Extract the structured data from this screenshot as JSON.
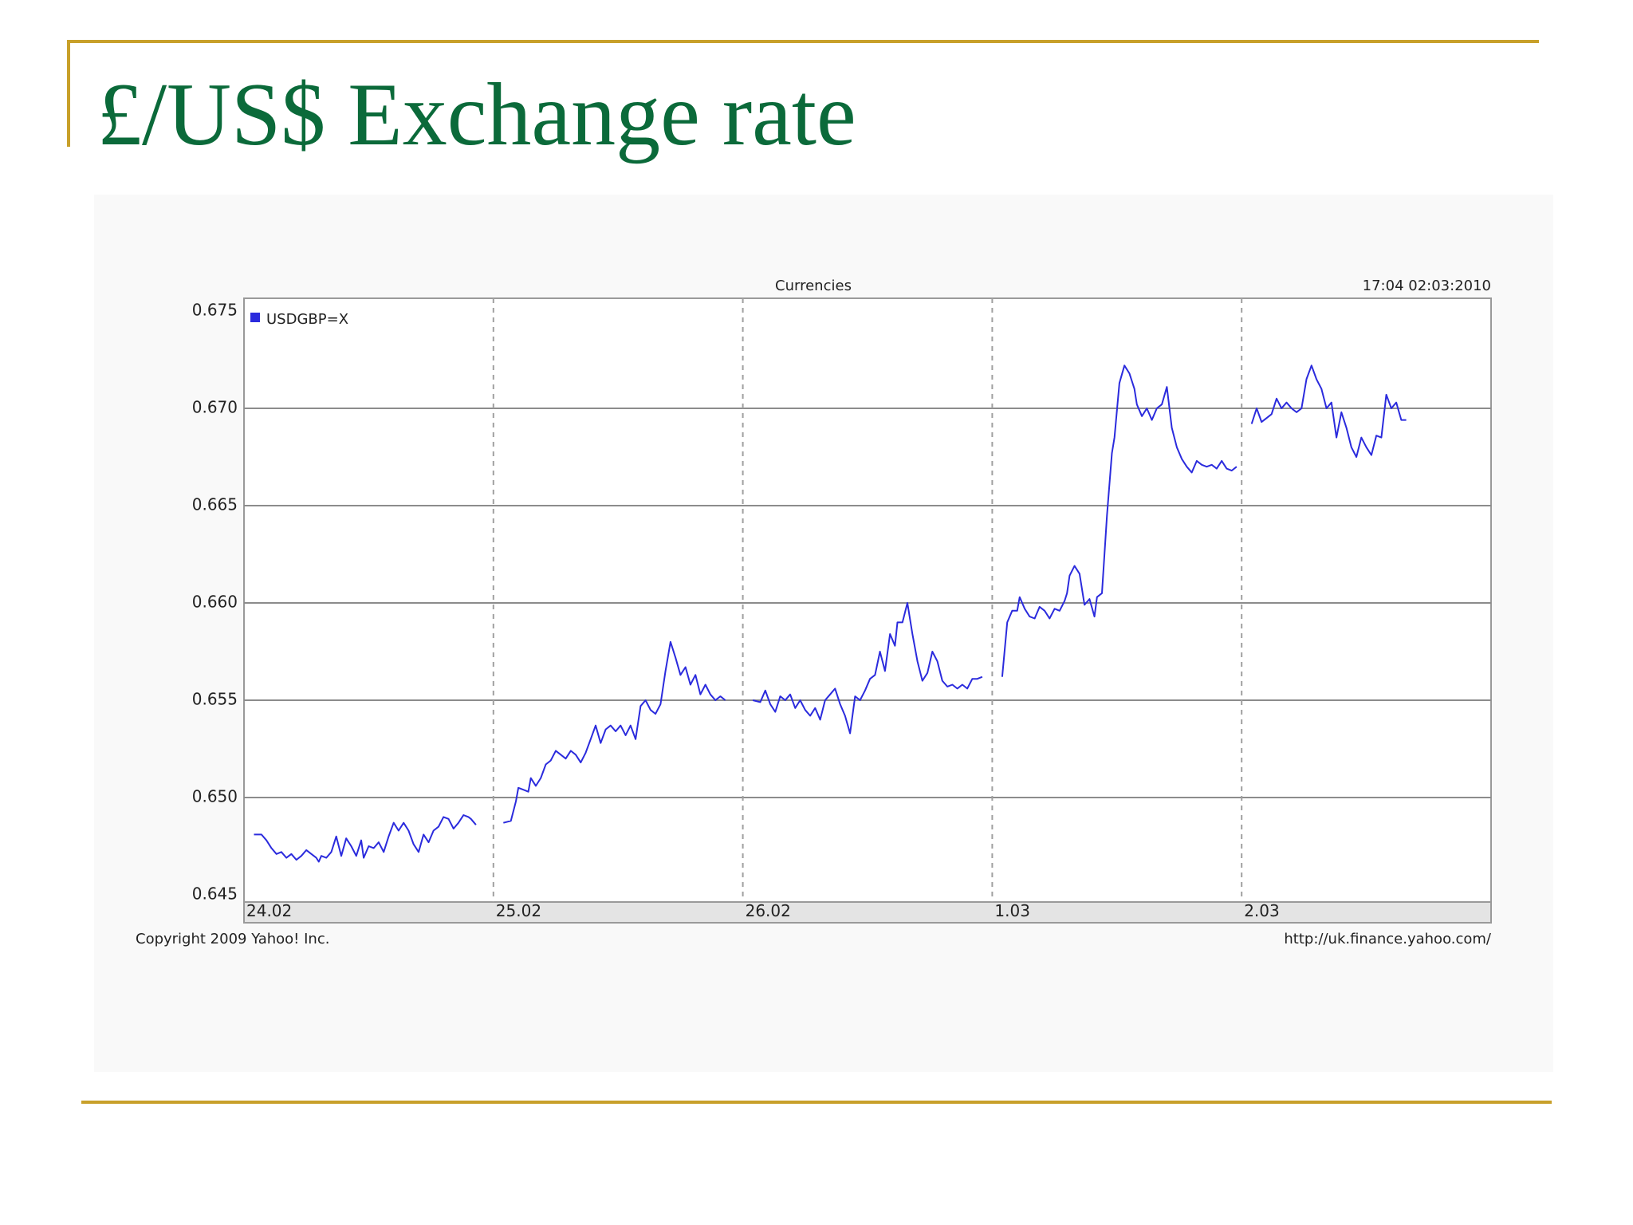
{
  "slide": {
    "title": "£/US$ Exchange rate",
    "accent_color": "#c8a02a",
    "title_color": "#0b6a3a"
  },
  "chart_data": {
    "type": "line",
    "title": "Currencies",
    "timestamp": "17:04 02:03:2010",
    "legend": "USDGBP=X",
    "legend_placement": "top-left",
    "grid": true,
    "line_color": "#2b2bdd",
    "ylim": [
      0.645,
      0.675
    ],
    "y_ticks": [
      "0.675",
      "0.670",
      "0.665",
      "0.660",
      "0.655",
      "0.650",
      "0.645"
    ],
    "x_ticks": [
      "24.02",
      "25.02",
      "26.02",
      "1.03",
      "2.03"
    ],
    "footer_left": "Copyright 2009 Yahoo! Inc.",
    "footer_right": "http://uk.finance.yahoo.com/",
    "series": [
      {
        "segments": [
          {
            "day": 0,
            "points": [
              [
                0.04,
                0.6481
              ],
              [
                0.07,
                0.6481
              ],
              [
                0.09,
                0.6478
              ],
              [
                0.11,
                0.6474
              ],
              [
                0.13,
                0.6471
              ],
              [
                0.15,
                0.6472
              ],
              [
                0.17,
                0.6469
              ],
              [
                0.19,
                0.6471
              ],
              [
                0.21,
                0.6468
              ],
              [
                0.23,
                0.647
              ],
              [
                0.25,
                0.6473
              ],
              [
                0.27,
                0.6471
              ],
              [
                0.29,
                0.6469
              ],
              [
                0.3,
                0.6467
              ],
              [
                0.31,
                0.647
              ],
              [
                0.33,
                0.6469
              ],
              [
                0.35,
                0.6472
              ],
              [
                0.37,
                0.648
              ],
              [
                0.39,
                0.647
              ],
              [
                0.41,
                0.6479
              ],
              [
                0.43,
                0.6475
              ],
              [
                0.45,
                0.647
              ],
              [
                0.47,
                0.6478
              ],
              [
                0.48,
                0.6469
              ],
              [
                0.5,
                0.6475
              ],
              [
                0.52,
                0.6474
              ],
              [
                0.54,
                0.6477
              ],
              [
                0.56,
                0.6472
              ],
              [
                0.58,
                0.648
              ],
              [
                0.6,
                0.6487
              ],
              [
                0.62,
                0.6483
              ],
              [
                0.64,
                0.6487
              ],
              [
                0.66,
                0.6483
              ],
              [
                0.68,
                0.6476
              ],
              [
                0.7,
                0.6472
              ],
              [
                0.72,
                0.6481
              ],
              [
                0.74,
                0.6477
              ],
              [
                0.76,
                0.6483
              ],
              [
                0.78,
                0.6485
              ],
              [
                0.8,
                0.649
              ],
              [
                0.82,
                0.6489
              ],
              [
                0.84,
                0.6484
              ],
              [
                0.86,
                0.6487
              ],
              [
                0.88,
                0.6491
              ],
              [
                0.9,
                0.649
              ],
              [
                0.91,
                0.6489
              ],
              [
                0.93,
                0.6486
              ]
            ]
          },
          {
            "day": 1,
            "points": [
              [
                0.04,
                0.6487
              ],
              [
                0.07,
                0.6488
              ],
              [
                0.09,
                0.6498
              ],
              [
                0.1,
                0.6505
              ],
              [
                0.12,
                0.6504
              ],
              [
                0.14,
                0.6503
              ],
              [
                0.15,
                0.651
              ],
              [
                0.17,
                0.6506
              ],
              [
                0.19,
                0.651
              ],
              [
                0.21,
                0.6517
              ],
              [
                0.23,
                0.6519
              ],
              [
                0.25,
                0.6524
              ],
              [
                0.27,
                0.6522
              ],
              [
                0.29,
                0.652
              ],
              [
                0.31,
                0.6524
              ],
              [
                0.33,
                0.6522
              ],
              [
                0.35,
                0.6518
              ],
              [
                0.37,
                0.6523
              ],
              [
                0.39,
                0.653
              ],
              [
                0.41,
                0.6537
              ],
              [
                0.43,
                0.6528
              ],
              [
                0.45,
                0.6535
              ],
              [
                0.47,
                0.6537
              ],
              [
                0.49,
                0.6534
              ],
              [
                0.51,
                0.6537
              ],
              [
                0.53,
                0.6532
              ],
              [
                0.55,
                0.6537
              ],
              [
                0.57,
                0.653
              ],
              [
                0.59,
                0.6547
              ],
              [
                0.61,
                0.655
              ],
              [
                0.63,
                0.6545
              ],
              [
                0.65,
                0.6543
              ],
              [
                0.67,
                0.6548
              ],
              [
                0.69,
                0.6565
              ],
              [
                0.71,
                0.658
              ],
              [
                0.73,
                0.6572
              ],
              [
                0.75,
                0.6563
              ],
              [
                0.77,
                0.6567
              ],
              [
                0.79,
                0.6558
              ],
              [
                0.81,
                0.6563
              ],
              [
                0.83,
                0.6553
              ],
              [
                0.85,
                0.6558
              ],
              [
                0.87,
                0.6553
              ],
              [
                0.89,
                0.655
              ],
              [
                0.91,
                0.6552
              ],
              [
                0.93,
                0.655
              ]
            ]
          },
          {
            "day": 2,
            "points": [
              [
                0.04,
                0.655
              ],
              [
                0.07,
                0.6549
              ],
              [
                0.09,
                0.6555
              ],
              [
                0.11,
                0.6548
              ],
              [
                0.13,
                0.6544
              ],
              [
                0.15,
                0.6552
              ],
              [
                0.17,
                0.655
              ],
              [
                0.19,
                0.6553
              ],
              [
                0.21,
                0.6546
              ],
              [
                0.23,
                0.655
              ],
              [
                0.25,
                0.6545
              ],
              [
                0.27,
                0.6542
              ],
              [
                0.29,
                0.6546
              ],
              [
                0.31,
                0.654
              ],
              [
                0.33,
                0.655
              ],
              [
                0.35,
                0.6553
              ],
              [
                0.37,
                0.6556
              ],
              [
                0.39,
                0.6548
              ],
              [
                0.41,
                0.6542
              ],
              [
                0.43,
                0.6533
              ],
              [
                0.45,
                0.6552
              ],
              [
                0.47,
                0.655
              ],
              [
                0.49,
                0.6555
              ],
              [
                0.51,
                0.6561
              ],
              [
                0.53,
                0.6563
              ],
              [
                0.55,
                0.6575
              ],
              [
                0.57,
                0.6565
              ],
              [
                0.59,
                0.6584
              ],
              [
                0.61,
                0.6578
              ],
              [
                0.62,
                0.659
              ],
              [
                0.64,
                0.659
              ],
              [
                0.66,
                0.66
              ],
              [
                0.68,
                0.6584
              ],
              [
                0.7,
                0.657
              ],
              [
                0.72,
                0.656
              ],
              [
                0.74,
                0.6564
              ],
              [
                0.76,
                0.6575
              ],
              [
                0.78,
                0.657
              ],
              [
                0.8,
                0.656
              ],
              [
                0.82,
                0.6557
              ],
              [
                0.84,
                0.6558
              ],
              [
                0.86,
                0.6556
              ],
              [
                0.88,
                0.6558
              ],
              [
                0.9,
                0.6556
              ],
              [
                0.92,
                0.6561
              ],
              [
                0.94,
                0.6561
              ],
              [
                0.96,
                0.6562
              ]
            ]
          },
          {
            "day": 3,
            "points": [
              [
                0.04,
                0.6562
              ],
              [
                0.06,
                0.659
              ],
              [
                0.08,
                0.6596
              ],
              [
                0.1,
                0.6596
              ],
              [
                0.11,
                0.6603
              ],
              [
                0.13,
                0.6597
              ],
              [
                0.15,
                0.6593
              ],
              [
                0.17,
                0.6592
              ],
              [
                0.19,
                0.6598
              ],
              [
                0.21,
                0.6596
              ],
              [
                0.23,
                0.6592
              ],
              [
                0.25,
                0.6597
              ],
              [
                0.27,
                0.6596
              ],
              [
                0.29,
                0.6601
              ],
              [
                0.3,
                0.6605
              ],
              [
                0.31,
                0.6614
              ],
              [
                0.33,
                0.6619
              ],
              [
                0.35,
                0.6615
              ],
              [
                0.37,
                0.6599
              ],
              [
                0.39,
                0.6602
              ],
              [
                0.41,
                0.6593
              ],
              [
                0.42,
                0.6603
              ],
              [
                0.44,
                0.6605
              ],
              [
                0.46,
                0.6645
              ],
              [
                0.48,
                0.6677
              ],
              [
                0.49,
                0.6685
              ],
              [
                0.51,
                0.6713
              ],
              [
                0.53,
                0.6722
              ],
              [
                0.55,
                0.6718
              ],
              [
                0.57,
                0.671
              ],
              [
                0.58,
                0.6702
              ],
              [
                0.6,
                0.6696
              ],
              [
                0.62,
                0.67
              ],
              [
                0.64,
                0.6694
              ],
              [
                0.66,
                0.67
              ],
              [
                0.68,
                0.6702
              ],
              [
                0.7,
                0.6711
              ],
              [
                0.72,
                0.669
              ],
              [
                0.74,
                0.668
              ],
              [
                0.76,
                0.6674
              ],
              [
                0.78,
                0.667
              ],
              [
                0.8,
                0.6667
              ],
              [
                0.82,
                0.6673
              ],
              [
                0.84,
                0.6671
              ],
              [
                0.86,
                0.667
              ],
              [
                0.88,
                0.6671
              ],
              [
                0.9,
                0.6669
              ],
              [
                0.92,
                0.6673
              ],
              [
                0.94,
                0.6669
              ],
              [
                0.96,
                0.6668
              ],
              [
                0.98,
                0.667
              ]
            ]
          },
          {
            "day": 4,
            "points": [
              [
                0.04,
                0.6692
              ],
              [
                0.06,
                0.67
              ],
              [
                0.08,
                0.6693
              ],
              [
                0.1,
                0.6695
              ],
              [
                0.12,
                0.6697
              ],
              [
                0.14,
                0.6705
              ],
              [
                0.16,
                0.67
              ],
              [
                0.18,
                0.6703
              ],
              [
                0.2,
                0.67
              ],
              [
                0.22,
                0.6698
              ],
              [
                0.24,
                0.67
              ],
              [
                0.26,
                0.6715
              ],
              [
                0.28,
                0.6722
              ],
              [
                0.3,
                0.6715
              ],
              [
                0.32,
                0.671
              ],
              [
                0.34,
                0.67
              ],
              [
                0.36,
                0.6703
              ],
              [
                0.38,
                0.6685
              ],
              [
                0.4,
                0.6698
              ],
              [
                0.42,
                0.669
              ],
              [
                0.44,
                0.668
              ],
              [
                0.46,
                0.6675
              ],
              [
                0.48,
                0.6685
              ],
              [
                0.5,
                0.668
              ],
              [
                0.52,
                0.6676
              ],
              [
                0.54,
                0.6686
              ],
              [
                0.56,
                0.6685
              ],
              [
                0.58,
                0.6707
              ],
              [
                0.6,
                0.67
              ],
              [
                0.62,
                0.6703
              ],
              [
                0.64,
                0.6694
              ],
              [
                0.66,
                0.6694
              ]
            ]
          }
        ]
      }
    ]
  }
}
